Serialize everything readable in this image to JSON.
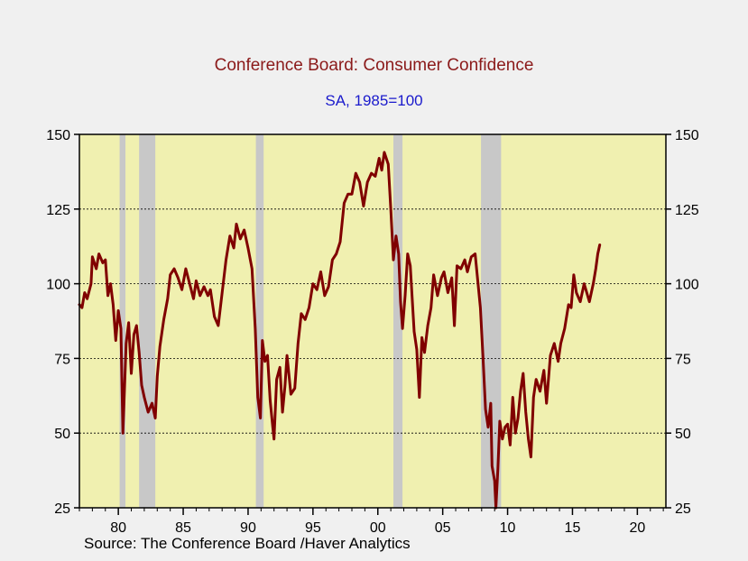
{
  "chart_data": {
    "type": "line",
    "title": "Conference Board: Consumer Confidence",
    "subtitle": "SA, 1985=100",
    "source": "Source:  The Conference Board /Haver Analytics",
    "xlabel": "",
    "ylabel": "",
    "xlim": [
      1977,
      2022.2
    ],
    "ylim": [
      25,
      150
    ],
    "x_ticks": [
      1980,
      1985,
      1990,
      1995,
      2000,
      2005,
      2010,
      2015,
      2020
    ],
    "x_tick_labels": [
      "80",
      "85",
      "90",
      "95",
      "00",
      "05",
      "10",
      "15",
      "20"
    ],
    "y_ticks": [
      25,
      50,
      75,
      100,
      125,
      150
    ],
    "y_tick_labels": [
      "25",
      "50",
      "75",
      "100",
      "125",
      "150"
    ],
    "y_axis_both_sides": true,
    "gridlines": "horizontal dotted at 50, 75, 100, 125",
    "colors": {
      "line": "#800000",
      "plot_background": "#f0f0b0",
      "recession_band": "#c8c8c8",
      "title": "#8b1a1a",
      "subtitle": "#1a1acc"
    },
    "recessions": [
      [
        1980.1,
        1980.55
      ],
      [
        1981.6,
        1982.85
      ],
      [
        1990.6,
        1991.2
      ],
      [
        2001.2,
        2001.9
      ],
      [
        2007.95,
        2009.5
      ]
    ],
    "series": [
      {
        "points": [
          [
            1977.0,
            93
          ],
          [
            1977.2,
            92
          ],
          [
            1977.4,
            97
          ],
          [
            1977.6,
            95
          ],
          [
            1977.9,
            100
          ],
          [
            1978.0,
            109
          ],
          [
            1978.3,
            105
          ],
          [
            1978.5,
            110
          ],
          [
            1978.8,
            107
          ],
          [
            1979.0,
            108
          ],
          [
            1979.2,
            96
          ],
          [
            1979.4,
            100
          ],
          [
            1979.6,
            93
          ],
          [
            1979.8,
            81
          ],
          [
            1980.0,
            91
          ],
          [
            1980.2,
            85
          ],
          [
            1980.35,
            50
          ],
          [
            1980.6,
            80
          ],
          [
            1980.8,
            87
          ],
          [
            1981.0,
            70
          ],
          [
            1981.2,
            83
          ],
          [
            1981.4,
            86
          ],
          [
            1981.6,
            77
          ],
          [
            1981.8,
            66
          ],
          [
            1982.0,
            62
          ],
          [
            1982.3,
            57
          ],
          [
            1982.6,
            60
          ],
          [
            1982.85,
            55
          ],
          [
            1983.0,
            69
          ],
          [
            1983.2,
            79
          ],
          [
            1983.5,
            88
          ],
          [
            1983.8,
            95
          ],
          [
            1984.0,
            103
          ],
          [
            1984.3,
            105
          ],
          [
            1984.6,
            102
          ],
          [
            1984.9,
            98
          ],
          [
            1985.2,
            105
          ],
          [
            1985.5,
            100
          ],
          [
            1985.8,
            95
          ],
          [
            1986.0,
            101
          ],
          [
            1986.3,
            96
          ],
          [
            1986.6,
            99
          ],
          [
            1986.9,
            96
          ],
          [
            1987.1,
            98
          ],
          [
            1987.4,
            89
          ],
          [
            1987.7,
            86
          ],
          [
            1988.0,
            97
          ],
          [
            1988.3,
            108
          ],
          [
            1988.6,
            116
          ],
          [
            1988.9,
            112
          ],
          [
            1989.1,
            120
          ],
          [
            1989.4,
            115
          ],
          [
            1989.7,
            118
          ],
          [
            1990.0,
            112
          ],
          [
            1990.3,
            105
          ],
          [
            1990.55,
            85
          ],
          [
            1990.75,
            62
          ],
          [
            1990.95,
            55
          ],
          [
            1991.1,
            81
          ],
          [
            1991.3,
            74
          ],
          [
            1991.5,
            76
          ],
          [
            1991.7,
            61
          ],
          [
            1991.9,
            52
          ],
          [
            1992.0,
            48
          ],
          [
            1992.2,
            68
          ],
          [
            1992.45,
            72
          ],
          [
            1992.65,
            57
          ],
          [
            1992.85,
            66
          ],
          [
            1993.0,
            76
          ],
          [
            1993.3,
            63
          ],
          [
            1993.6,
            65
          ],
          [
            1993.85,
            80
          ],
          [
            1994.1,
            90
          ],
          [
            1994.4,
            88
          ],
          [
            1994.7,
            92
          ],
          [
            1995.0,
            100
          ],
          [
            1995.3,
            98
          ],
          [
            1995.6,
            104
          ],
          [
            1995.9,
            96
          ],
          [
            1996.2,
            99
          ],
          [
            1996.5,
            108
          ],
          [
            1996.8,
            110
          ],
          [
            1997.1,
            114
          ],
          [
            1997.4,
            127
          ],
          [
            1997.7,
            130
          ],
          [
            1998.0,
            130
          ],
          [
            1998.3,
            137
          ],
          [
            1998.6,
            134
          ],
          [
            1998.9,
            126
          ],
          [
            1999.2,
            134
          ],
          [
            1999.5,
            137
          ],
          [
            1999.8,
            136
          ],
          [
            2000.1,
            142
          ],
          [
            2000.3,
            138
          ],
          [
            2000.5,
            144
          ],
          [
            2000.8,
            140
          ],
          [
            2001.0,
            125
          ],
          [
            2001.2,
            108
          ],
          [
            2001.4,
            116
          ],
          [
            2001.6,
            110
          ],
          [
            2001.75,
            94
          ],
          [
            2001.9,
            85
          ],
          [
            2002.1,
            96
          ],
          [
            2002.3,
            110
          ],
          [
            2002.5,
            106
          ],
          [
            2002.8,
            84
          ],
          [
            2003.0,
            78
          ],
          [
            2003.2,
            62
          ],
          [
            2003.4,
            82
          ],
          [
            2003.6,
            77
          ],
          [
            2003.85,
            86
          ],
          [
            2004.1,
            92
          ],
          [
            2004.3,
            103
          ],
          [
            2004.6,
            96
          ],
          [
            2004.9,
            102
          ],
          [
            2005.1,
            104
          ],
          [
            2005.4,
            97
          ],
          [
            2005.7,
            102
          ],
          [
            2005.9,
            86
          ],
          [
            2006.1,
            106
          ],
          [
            2006.4,
            105
          ],
          [
            2006.7,
            108
          ],
          [
            2006.9,
            104
          ],
          [
            2007.2,
            109
          ],
          [
            2007.5,
            110
          ],
          [
            2007.7,
            101
          ],
          [
            2007.9,
            92
          ],
          [
            2008.1,
            76
          ],
          [
            2008.3,
            58
          ],
          [
            2008.5,
            52
          ],
          [
            2008.7,
            60
          ],
          [
            2008.8,
            39
          ],
          [
            2009.0,
            34
          ],
          [
            2009.1,
            25
          ],
          [
            2009.25,
            38
          ],
          [
            2009.4,
            54
          ],
          [
            2009.6,
            48
          ],
          [
            2009.8,
            52
          ],
          [
            2010.0,
            53
          ],
          [
            2010.2,
            46
          ],
          [
            2010.4,
            62
          ],
          [
            2010.6,
            50
          ],
          [
            2010.8,
            55
          ],
          [
            2011.0,
            64
          ],
          [
            2011.2,
            70
          ],
          [
            2011.4,
            57
          ],
          [
            2011.6,
            48
          ],
          [
            2011.8,
            42
          ],
          [
            2012.0,
            62
          ],
          [
            2012.2,
            68
          ],
          [
            2012.5,
            64
          ],
          [
            2012.8,
            71
          ],
          [
            2013.0,
            60
          ],
          [
            2013.3,
            76
          ],
          [
            2013.6,
            80
          ],
          [
            2013.9,
            74
          ],
          [
            2014.1,
            80
          ],
          [
            2014.4,
            85
          ],
          [
            2014.7,
            93
          ],
          [
            2014.9,
            92
          ],
          [
            2015.1,
            103
          ],
          [
            2015.3,
            97
          ],
          [
            2015.6,
            94
          ],
          [
            2015.9,
            100
          ],
          [
            2016.1,
            97
          ],
          [
            2016.3,
            94
          ],
          [
            2016.6,
            100
          ],
          [
            2016.8,
            105
          ],
          [
            2016.95,
            110
          ],
          [
            2017.1,
            113
          ]
        ]
      }
    ]
  }
}
